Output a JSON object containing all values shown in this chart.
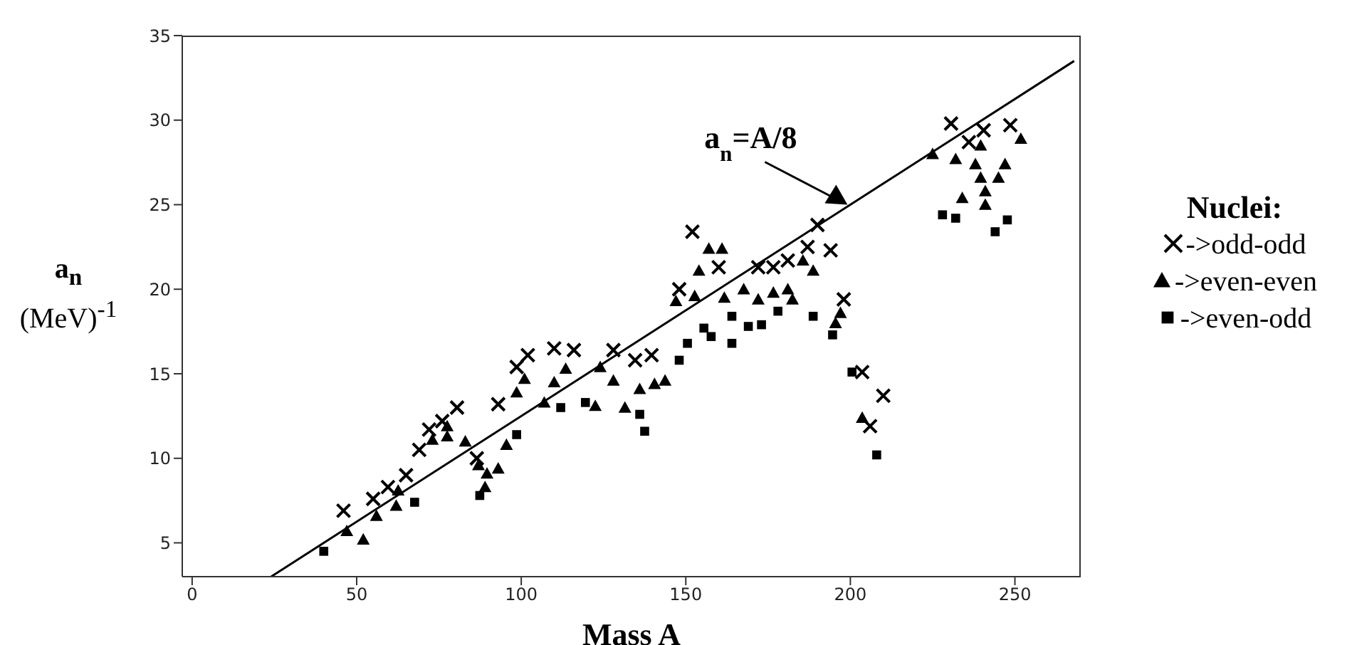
{
  "chart_data": {
    "type": "scatter",
    "xlabel": "Mass A",
    "ylabel": "a$_{n}$ (MeV)$^{-1}$",
    "legend_title": "Nuclei:",
    "legend": "right",
    "xlim": [
      -3,
      270
    ],
    "xticks": [
      0,
      50,
      100,
      150,
      200,
      250
    ],
    "ylim": [
      3,
      35
    ],
    "yticks": [
      5,
      10,
      15,
      20,
      25,
      30,
      35
    ],
    "annotations": [
      {
        "text": "a$_{n}$=A/8",
        "x": 200,
        "y": 25
      }
    ],
    "series": [
      {
        "name": "->odd-odd",
        "color": "#000000",
        "marker": "cross",
        "x": [
          46,
          55,
          59.5,
          65,
          69,
          72,
          76,
          80.5,
          86.5,
          93,
          98.6,
          102,
          110,
          116,
          128,
          134.6,
          139.6,
          148,
          152,
          160,
          172,
          176.6,
          181,
          187,
          190,
          194,
          198,
          203.6,
          206,
          210,
          230.6,
          236,
          240.5,
          248.6
        ],
        "values": [
          6.9,
          7.6,
          8.3,
          9,
          10.5,
          11.7,
          12.2,
          13,
          10,
          13.2,
          15.4,
          16.1,
          16.5,
          16.4,
          16.4,
          15.8,
          16.1,
          20,
          23.4,
          21.3,
          21.3,
          21.3,
          21.7,
          22.5,
          23.8,
          22.3,
          19.4,
          15.1,
          11.9,
          13.7,
          29.8,
          28.7,
          29.4,
          29.7
        ]
      },
      {
        "name": "->even-even",
        "color": "#000000",
        "marker": "triangle",
        "x": [
          47,
          52,
          56,
          62,
          62.6,
          73,
          77.5,
          77.5,
          83,
          87,
          89,
          89.6,
          93,
          95.5,
          98.6,
          101,
          107,
          110,
          113.5,
          122.5,
          124,
          128,
          131.5,
          136,
          140.5,
          143.7,
          147,
          152.7,
          154,
          157,
          161,
          161.7,
          167.6,
          172,
          176.6,
          181,
          182.4,
          185.6,
          188.7,
          195.5,
          197,
          203.6,
          225,
          232,
          234,
          238,
          239.6,
          239.6,
          241,
          241,
          245,
          247,
          251.8
        ],
        "values": [
          5.7,
          5.2,
          6.6,
          7.2,
          8.1,
          11.1,
          11.3,
          11.9,
          11,
          9.6,
          8.3,
          9.1,
          9.4,
          10.8,
          13.9,
          14.7,
          13.3,
          14.5,
          15.3,
          13.1,
          15.4,
          14.6,
          13,
          14.1,
          14.4,
          14.6,
          19.3,
          19.6,
          21.1,
          22.4,
          22.4,
          19.5,
          20,
          19.4,
          19.8,
          20,
          19.4,
          21.7,
          21.1,
          18,
          18.6,
          12.4,
          28,
          27.7,
          25.4,
          27.4,
          28.5,
          26.6,
          25.8,
          25,
          26.6,
          27.4,
          28.9
        ]
      },
      {
        "name": "->even-odd",
        "color": "#000000",
        "marker": "square",
        "x": [
          40,
          67.6,
          87.4,
          98.6,
          112,
          119.5,
          136,
          137.5,
          148,
          150.5,
          155.5,
          157.7,
          164,
          164,
          169,
          173,
          178,
          188.7,
          194.6,
          200.5,
          208,
          228,
          232,
          244,
          247.7
        ],
        "values": [
          4.5,
          7.4,
          7.8,
          11.4,
          13,
          13.3,
          12.6,
          11.6,
          15.8,
          16.8,
          17.7,
          17.2,
          16.8,
          18.4,
          17.8,
          17.9,
          18.7,
          18.4,
          17.3,
          15.1,
          10.2,
          24.4,
          24.2,
          23.4,
          24.1
        ]
      },
      {
        "type": "line",
        "color": "#000000",
        "x": [
          24,
          268
        ],
        "values": [
          3,
          33.5
        ]
      }
    ]
  }
}
